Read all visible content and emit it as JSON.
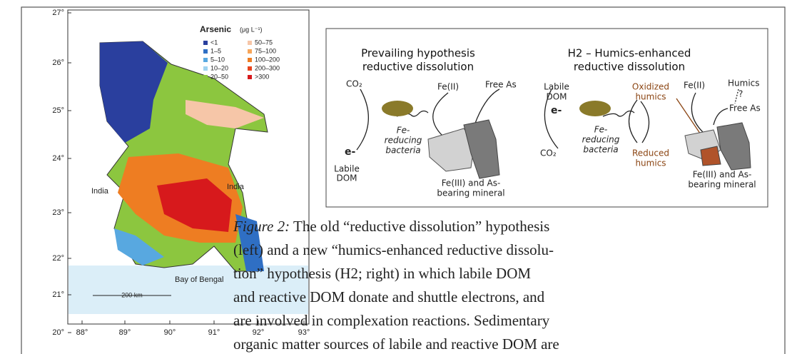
{
  "map": {
    "latitude_labels": [
      "27°",
      "26°",
      "25°",
      "24°",
      "23°",
      "22°",
      "21°",
      "20°"
    ],
    "longitude_labels": [
      "88°",
      "89°",
      "90°",
      "91°",
      "92°",
      "93°"
    ],
    "legend": {
      "title": "Arsenic",
      "unit": "(μg L⁻¹)",
      "items": [
        {
          "label": "<1",
          "color": "#2a3f9e"
        },
        {
          "label": "1–5",
          "color": "#2f6fc4"
        },
        {
          "label": "5–10",
          "color": "#58a8e0"
        },
        {
          "label": "10–20",
          "color": "#9fd3f0"
        },
        {
          "label": "20–50",
          "color": "#8cc63f"
        },
        {
          "label": "50–75",
          "color": "#f6c6a8"
        },
        {
          "label": "75–100",
          "color": "#f7a65a"
        },
        {
          "label": "100–200",
          "color": "#ee7d22"
        },
        {
          "label": "200–300",
          "color": "#e8451e"
        },
        {
          "label": ">300",
          "color": "#d7191c"
        }
      ]
    },
    "labels": [
      "India",
      "India",
      "Bay of Bengal"
    ],
    "scale": "200 km"
  },
  "diagram": {
    "left": {
      "title": [
        "Prevailing hypothesis",
        "reductive dissolution"
      ],
      "co2": "CO₂",
      "electron": "e-",
      "dom": [
        "Labile",
        "DOM"
      ],
      "bacteria": [
        "Fe-",
        "reducing",
        "bacteria"
      ],
      "fe2": "Fe(II)",
      "free_as": "Free As",
      "mineral": [
        "Fe(III) and As-",
        "bearing mineral"
      ]
    },
    "right": {
      "title": [
        "H2 – Humics-enhanced",
        "reductive dissolution"
      ],
      "dom": [
        "Labile",
        "DOM"
      ],
      "electron": "e-",
      "co2": "CO₂",
      "bacteria": [
        "Fe-",
        "reducing",
        "bacteria"
      ],
      "oxidized": [
        "Oxidized",
        "humics"
      ],
      "reduced": [
        "Reduced",
        "humics"
      ],
      "fe2": "Fe(II)",
      "humics": "Humics",
      "question": "?",
      "free_as": "Free As",
      "mineral": [
        "Fe(III) and As-",
        "bearing mineral"
      ]
    }
  },
  "caption": {
    "label": "Figure 2:",
    "lines": [
      "The old “reductive dissolution” hypothesis",
      "(left) and a new “humics-enhanced reductive dissolu-",
      "tion” hypothesis (H2; right) in which labile DOM",
      "and reactive DOM donate and shuttle electrons, and",
      "are involved in complexation reactions. Sedimentary",
      "organic matter sources of labile and reactive DOM are"
    ]
  }
}
